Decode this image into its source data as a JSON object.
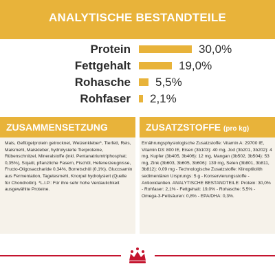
{
  "analysis": {
    "title": "ANALYTISCHE BESTANDTEILE",
    "rows": [
      {
        "label": "Protein",
        "value": "30,0%",
        "percent": 30.0
      },
      {
        "label": "Fettgehalt",
        "value": "19,0%",
        "percent": 19.0
      },
      {
        "label": "Rohasche",
        "value": "5,5%",
        "percent": 5.5
      },
      {
        "label": "Rohfaser",
        "value": "2,1%",
        "percent": 2.1
      }
    ]
  },
  "composition": {
    "title": "ZUSAMMENSETZUNG",
    "text": "Mais, Geflügelprotein getrocknet, Weizenkleber*, Tierfett, Reis, Maismehl, Maiskleber, hydrolysierte Tierproteine, Rübenschnitzel, Mineralstoffe (inkl. Pentanatriumtriphosphat; 0,35%), Sojaöl, pflanzliche Fasern, Fischöl, Hefenerzeugnisse, Fructo-Oligosaccharide 0,34%, Borretschöl (0,1%), Glucosamin aus Fermentation, Tagetesmehl, Knorpel hydrolysiert (Quelle für Chondroitin). *L.I.P.: Für ihre sehr hohe Verdaulichkeit ausgewählte Proteine."
  },
  "additives": {
    "title": "ZUSATZSTOFFE",
    "unit": "(pro kg)",
    "text": "Ernährungsphysiologische Zusatzstoffe: Vitamin A: 29700 IE, Vitamin D3: 800 IE, Eisen (3b103): 40 mg, Jod (3b201, 3b202): 4 mg, Kupfer (3b405, 3b406): 12 mg, Mangan (3b502, 3b504): 53 mg, Zink (3b603, 3b605, 3b606): 139 mg, Selen (3b801, 3b811, 3b812): 0,09 mg - Technologische Zusatzstoffe: Klinoptilolith sedimentären Ursprungs: 5 g - Konservierungsstoffe - Antioxidantien. ANALYTISCHE BESTANDTEILE: Protein: 30,0% - Rohfaser: 2,1% - Fettgehalt: 19,0% - Rohasche: 5,5% - Omega-3-Fettsäuren: 0,8% - EPA/DHA: 0,3%."
  },
  "colors": {
    "accent": "#e8b33a",
    "brand_red": "#c4142e",
    "panel_bg": "#f6f2ea",
    "text": "#2b2b2b"
  },
  "footer": {
    "logo_icon": "crown-logo-icon"
  }
}
